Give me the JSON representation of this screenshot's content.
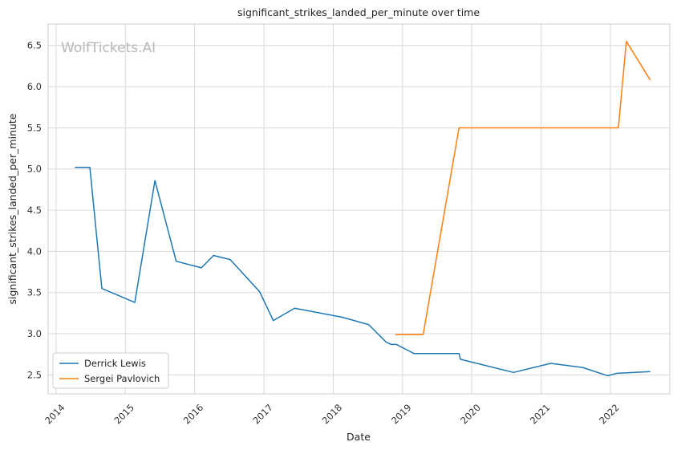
{
  "chart_data": {
    "type": "line",
    "title": "significant_strikes_landed_per_minute over time",
    "xlabel": "Date",
    "ylabel": "significant_strikes_landed_per_minute",
    "watermark": "WolfTickets.AI",
    "xlim": [
      "2013-11-20",
      "2022-11-10"
    ],
    "ylim": [
      2.27,
      6.76
    ],
    "x_ticks": [
      "2014",
      "2015",
      "2016",
      "2017",
      "2018",
      "2019",
      "2020",
      "2021",
      "2022"
    ],
    "y_ticks": [
      "2.5",
      "3.0",
      "3.5",
      "4.0",
      "4.5",
      "5.0",
      "5.5",
      "6.0",
      "6.5"
    ],
    "grid": true,
    "legend_position": "lower-left",
    "series": [
      {
        "name": "Derrick Lewis",
        "color": "#1f77b4",
        "points": [
          [
            "2014-04-10",
            5.02
          ],
          [
            "2014-06-28",
            5.02
          ],
          [
            "2014-08-30",
            3.55
          ],
          [
            "2015-02-20",
            3.38
          ],
          [
            "2015-06-06",
            4.86
          ],
          [
            "2015-09-26",
            3.88
          ],
          [
            "2016-02-06",
            3.8
          ],
          [
            "2016-04-10",
            3.95
          ],
          [
            "2016-07-07",
            3.9
          ],
          [
            "2016-12-09",
            3.51
          ],
          [
            "2017-02-19",
            3.16
          ],
          [
            "2017-06-11",
            3.31
          ],
          [
            "2018-02-18",
            3.2
          ],
          [
            "2018-07-07",
            3.11
          ],
          [
            "2018-10-06",
            2.9
          ],
          [
            "2018-11-02",
            2.87
          ],
          [
            "2018-11-30",
            2.87
          ],
          [
            "2019-03-02",
            2.76
          ],
          [
            "2019-10-26",
            2.76
          ],
          [
            "2019-11-02",
            2.69
          ],
          [
            "2020-08-08",
            2.53
          ],
          [
            "2021-02-20",
            2.64
          ],
          [
            "2021-08-07",
            2.59
          ],
          [
            "2021-12-18",
            2.49
          ],
          [
            "2022-02-05",
            2.52
          ],
          [
            "2022-07-30",
            2.54
          ]
        ]
      },
      {
        "name": "Sergei Pavlovich",
        "color": "#ff7f0e",
        "points": [
          [
            "2018-11-24",
            2.99
          ],
          [
            "2019-04-20",
            2.99
          ],
          [
            "2019-10-26",
            5.5
          ],
          [
            "2022-02-12",
            5.5
          ],
          [
            "2022-03-26",
            6.55
          ],
          [
            "2022-07-30",
            6.08
          ]
        ]
      }
    ]
  }
}
